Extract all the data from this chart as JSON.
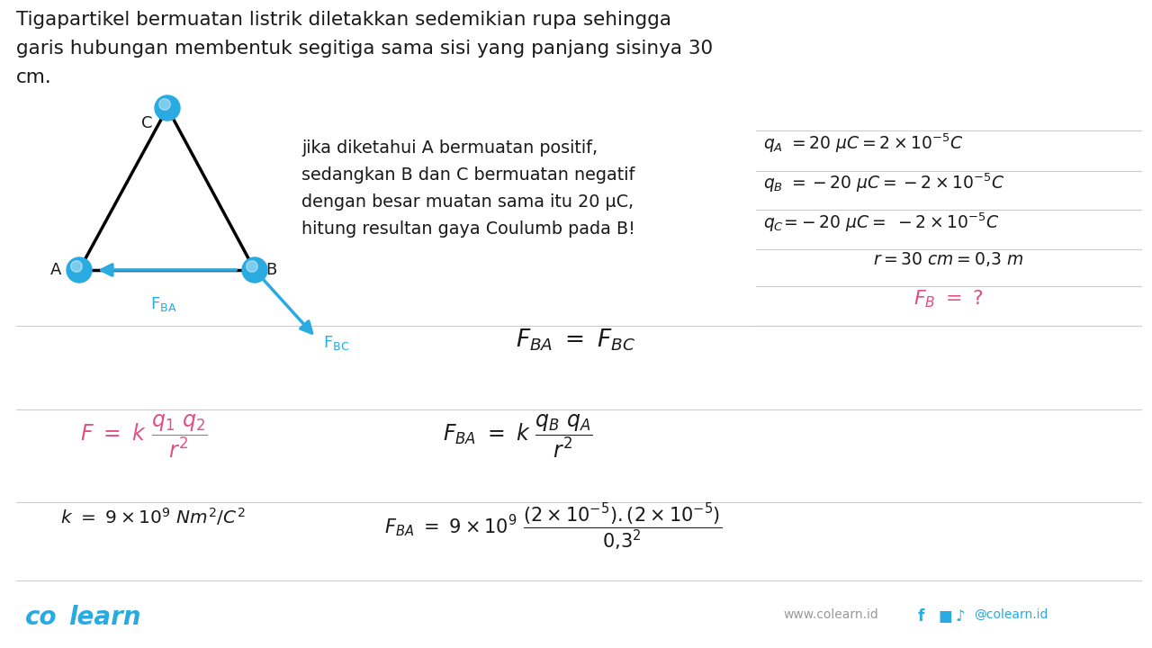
{
  "bg_color": "#ffffff",
  "particle_color": "#29ABE2",
  "triangle_color": "#000000",
  "arrow_color": "#29ABE2",
  "text_black": "#1a1a1a",
  "text_pink": "#e05080",
  "text_blue": "#29ABE2",
  "separator_color": "#cccccc",
  "footer_web_color": "#999999",
  "title_lines": [
    "Tigapartikel bermuatan listrik diletakkan sedemikian rupa sehingga",
    "garis hubungan membentuk segitiga sama sisi yang panjang sisinya 30",
    "cm."
  ],
  "desc_lines": [
    "jika diketahui A bermuatan positif,",
    "sedangkan B dan C bermuatan negatif",
    "dengan besar muatan sama itu 20 μC,",
    "hitung resultan gaya Coulumb pada B!"
  ]
}
